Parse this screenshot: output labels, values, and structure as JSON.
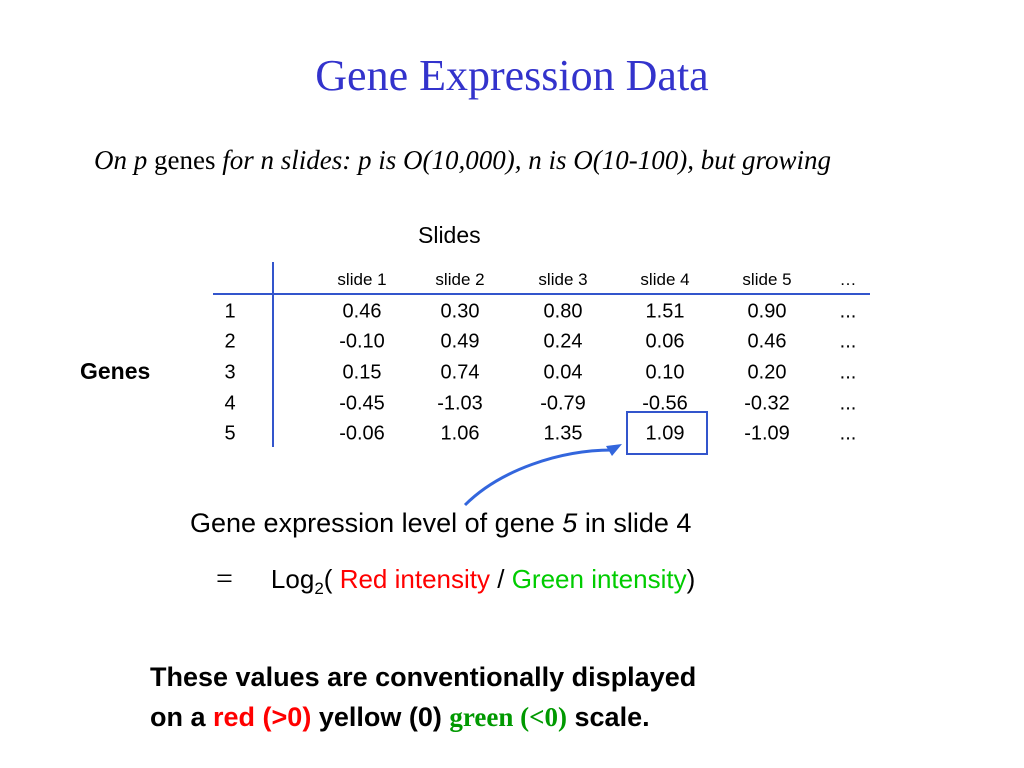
{
  "title": "Gene Expression Data",
  "intro": [
    "On p",
    "genes",
    "for n slides: p  is O(10,000), n is O(10-100), but growing"
  ],
  "table": {
    "column_group_label": "Slides",
    "row_group_label": "Genes",
    "columns": [
      "slide 1",
      "slide 2",
      "slide 3",
      "slide 4",
      "slide 5",
      "…"
    ],
    "rows": [
      {
        "label": "1",
        "values": [
          "0.46",
          "0.30",
          "0.80",
          "1.51",
          "0.90",
          "..."
        ]
      },
      {
        "label": "2",
        "values": [
          "-0.10",
          "0.49",
          "0.24",
          "0.06",
          "0.46",
          "..."
        ]
      },
      {
        "label": "3",
        "values": [
          "0.15",
          "0.74",
          "0.04",
          "0.10",
          "0.20",
          "..."
        ]
      },
      {
        "label": "4",
        "values": [
          "-0.45",
          "-1.03",
          "-0.79",
          "-0.56",
          "-0.32",
          "..."
        ]
      },
      {
        "label": "5",
        "values": [
          "-0.06",
          "1.06",
          "1.35",
          "1.09",
          "-1.09",
          "..."
        ]
      }
    ]
  },
  "caption": [
    "Gene expression level of gene",
    "5",
    "in slide 4"
  ],
  "formula": [
    "=",
    "Log",
    "2",
    "(",
    "Red intensity",
    "/",
    "Green intensity",
    ")"
  ],
  "note": [
    "These values are conventionally displayed",
    "on a",
    "red (>0)",
    "yellow (0)",
    "green (<0)",
    "scale."
  ]
}
